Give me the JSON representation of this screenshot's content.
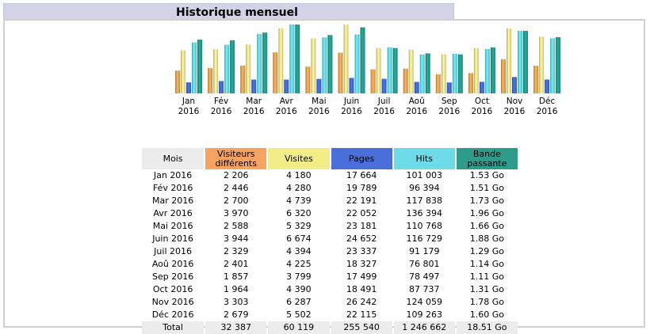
{
  "title": "Historique mensuel",
  "colors": {
    "visitors": "#f5a35e",
    "visits": "#f2ed86",
    "pages": "#4a6fdb",
    "hits": "#6edbe9",
    "bandwidth": "#2e9c8a",
    "header_mois": "#ececec",
    "total_row": "#ececec"
  },
  "chart_data": {
    "type": "bar",
    "categories": [
      "Jan 2016",
      "Fév 2016",
      "Mar 2016",
      "Avr 2016",
      "Mai 2016",
      "Juin 2016",
      "Juil 2016",
      "Aoû 2016",
      "Sep 2016",
      "Oct 2016",
      "Nov 2016",
      "Déc 2016"
    ],
    "axis_labels": [
      [
        "Jan",
        "2016"
      ],
      [
        "Fév",
        "2016"
      ],
      [
        "Mar",
        "2016"
      ],
      [
        "Avr",
        "2016"
      ],
      [
        "Mai",
        "2016"
      ],
      [
        "Juin",
        "2016"
      ],
      [
        "Juil",
        "2016"
      ],
      [
        "Aoû",
        "2016"
      ],
      [
        "Sep",
        "2016"
      ],
      [
        "Oct",
        "2016"
      ],
      [
        "Nov",
        "2016"
      ],
      [
        "Déc",
        "2016"
      ]
    ],
    "series": [
      {
        "name": "Visiteurs différents",
        "color": "#e8a04c",
        "values": [
          2206,
          2446,
          2700,
          3970,
          2588,
          3944,
          2329,
          2401,
          1857,
          1964,
          3303,
          2679
        ]
      },
      {
        "name": "Visites",
        "color": "#f2e08a",
        "values": [
          4180,
          4280,
          4739,
          6320,
          5329,
          6674,
          4394,
          4225,
          3799,
          4390,
          6287,
          5502
        ]
      },
      {
        "name": "Pages",
        "color": "#3c68d6",
        "values": [
          17664,
          19789,
          22191,
          22052,
          23181,
          24652,
          23337,
          18327,
          17499,
          18491,
          26242,
          22115
        ]
      },
      {
        "name": "Hits",
        "color": "#5fd6e3",
        "values": [
          101003,
          96394,
          117838,
          136394,
          110768,
          116729,
          91179,
          76801,
          78497,
          87737,
          124059,
          109263
        ]
      },
      {
        "name": "Bande passante",
        "color": "#1f9a8a",
        "values": [
          1.53,
          1.51,
          1.73,
          1.96,
          1.66,
          1.88,
          1.29,
          1.14,
          1.11,
          1.31,
          1.78,
          1.6
        ]
      }
    ],
    "grid": false,
    "legend": "none"
  },
  "table": {
    "headers": {
      "mois": "Mois",
      "visitors": [
        "Visiteurs",
        "différents"
      ],
      "visits": "Visites",
      "pages": "Pages",
      "hits": "Hits",
      "bandwidth": [
        "Bande",
        "passante"
      ]
    },
    "rows": [
      [
        "Jan 2016",
        "2 206",
        "4 180",
        "17 664",
        "101 003",
        "1.53 Go"
      ],
      [
        "Fév 2016",
        "2 446",
        "4 280",
        "19 789",
        "96 394",
        "1.51 Go"
      ],
      [
        "Mar 2016",
        "2 700",
        "4 739",
        "22 191",
        "117 838",
        "1.73 Go"
      ],
      [
        "Avr 2016",
        "3 970",
        "6 320",
        "22 052",
        "136 394",
        "1.96 Go"
      ],
      [
        "Mai 2016",
        "2 588",
        "5 329",
        "23 181",
        "110 768",
        "1.66 Go"
      ],
      [
        "Juin 2016",
        "3 944",
        "6 674",
        "24 652",
        "116 729",
        "1.88 Go"
      ],
      [
        "Juil 2016",
        "2 329",
        "4 394",
        "23 337",
        "91 179",
        "1.29 Go"
      ],
      [
        "Aoû 2016",
        "2 401",
        "4 225",
        "18 327",
        "76 801",
        "1.14 Go"
      ],
      [
        "Sep 2016",
        "1 857",
        "3 799",
        "17 499",
        "78 497",
        "1.11 Go"
      ],
      [
        "Oct 2016",
        "1 964",
        "4 390",
        "18 491",
        "87 737",
        "1.31 Go"
      ],
      [
        "Nov 2016",
        "3 303",
        "6 287",
        "26 242",
        "124 059",
        "1.78 Go"
      ],
      [
        "Déc 2016",
        "2 679",
        "5 502",
        "22 115",
        "109 263",
        "1.60 Go"
      ]
    ],
    "total": [
      "Total",
      "32 387",
      "60 119",
      "255 540",
      "1 246 662",
      "18.51 Go"
    ]
  }
}
